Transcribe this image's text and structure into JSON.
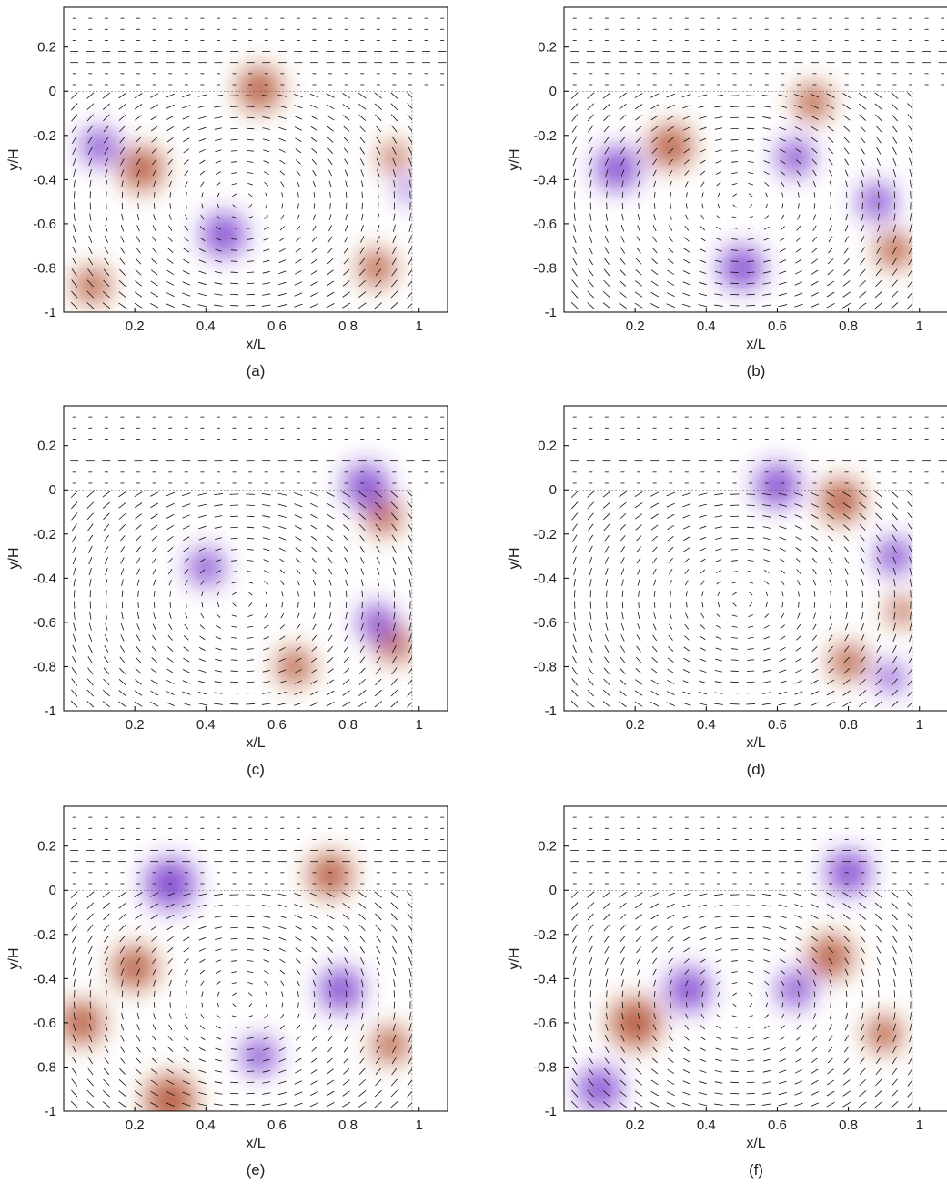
{
  "chart_data": [
    {
      "type": "heatmap",
      "caption": "(a)",
      "xlabel": "x/L",
      "ylabel": "y/H",
      "xlim": [
        0,
        1.08
      ],
      "ylim": [
        -1,
        0.38
      ],
      "xticks": [
        0.2,
        0.4,
        0.6,
        0.8,
        1
      ],
      "xtick_labels": [
        "0.2",
        "0.4",
        "0.6",
        "0.8",
        "1"
      ],
      "yticks": [
        0.2,
        0,
        -0.2,
        -0.4,
        -0.6,
        -0.8,
        -1
      ],
      "ytick_labels": [
        "0.2",
        "0",
        "-0.2",
        "-0.4",
        "-0.6",
        "-0.8",
        "-1"
      ],
      "cavity": {
        "x_end": 0.98,
        "y_top": 0
      },
      "blobs": [
        {
          "x": 0.22,
          "y": -0.35,
          "r": 0.06,
          "s": 1
        },
        {
          "x": 0.93,
          "y": -0.3,
          "r": 0.04,
          "s": 1
        },
        {
          "x": 0.55,
          "y": 0.01,
          "r": 0.06,
          "s": 1
        },
        {
          "x": 0.08,
          "y": -0.88,
          "r": 0.05,
          "s": 1
        },
        {
          "x": 0.88,
          "y": -0.8,
          "r": 0.05,
          "s": 1
        },
        {
          "x": 0.97,
          "y": -0.45,
          "r": 0.03,
          "s": -1
        },
        {
          "x": 0.1,
          "y": -0.25,
          "r": 0.05,
          "s": -1
        },
        {
          "x": 0.45,
          "y": -0.65,
          "r": 0.06,
          "s": -1
        }
      ]
    },
    {
      "type": "heatmap",
      "caption": "(b)",
      "xlabel": "x/L",
      "ylabel": "y/H",
      "xlim": [
        0,
        1.08
      ],
      "ylim": [
        -1,
        0.38
      ],
      "xticks": [
        0.2,
        0.4,
        0.6,
        0.8,
        1
      ],
      "xtick_labels": [
        "0.2",
        "0.4",
        "0.6",
        "0.8",
        "1"
      ],
      "yticks": [
        0.2,
        0,
        -0.2,
        -0.4,
        -0.6,
        -0.8,
        -1
      ],
      "ytick_labels": [
        "0.2",
        "0",
        "-0.2",
        "-0.4",
        "-0.6",
        "-0.8",
        "-1"
      ],
      "cavity": {
        "x_end": 0.98,
        "y_top": 0
      },
      "blobs": [
        {
          "x": 0.93,
          "y": -0.72,
          "r": 0.05,
          "s": 1
        },
        {
          "x": 0.3,
          "y": -0.25,
          "r": 0.06,
          "s": 1
        },
        {
          "x": 0.7,
          "y": -0.05,
          "r": 0.05,
          "s": 1
        },
        {
          "x": 0.15,
          "y": -0.35,
          "r": 0.06,
          "s": -1
        },
        {
          "x": 0.88,
          "y": -0.5,
          "r": 0.05,
          "s": -1
        },
        {
          "x": 0.5,
          "y": -0.8,
          "r": 0.06,
          "s": -1
        },
        {
          "x": 0.65,
          "y": -0.3,
          "r": 0.05,
          "s": -1
        }
      ]
    },
    {
      "type": "heatmap",
      "caption": "(c)",
      "xlabel": "x/L",
      "ylabel": "y/H",
      "xlim": [
        0,
        1.08
      ],
      "ylim": [
        -1,
        0.38
      ],
      "xticks": [
        0.2,
        0.4,
        0.6,
        0.8,
        1
      ],
      "xtick_labels": [
        "0.2",
        "0.4",
        "0.6",
        "0.8",
        "1"
      ],
      "yticks": [
        0.2,
        0,
        -0.2,
        -0.4,
        -0.6,
        -0.8,
        -1
      ],
      "ytick_labels": [
        "0.2",
        "0",
        "-0.2",
        "-0.4",
        "-0.6",
        "-0.8",
        "-1"
      ],
      "cavity": {
        "x_end": 0.98,
        "y_top": 0
      },
      "blobs": [
        {
          "x": 0.9,
          "y": -0.12,
          "r": 0.05,
          "s": 1
        },
        {
          "x": 0.93,
          "y": -0.7,
          "r": 0.05,
          "s": 1
        },
        {
          "x": 0.65,
          "y": -0.8,
          "r": 0.05,
          "s": 1
        },
        {
          "x": 0.88,
          "y": -0.6,
          "r": 0.05,
          "s": -1
        },
        {
          "x": 0.85,
          "y": 0.02,
          "r": 0.06,
          "s": -1
        },
        {
          "x": 0.4,
          "y": -0.35,
          "r": 0.05,
          "s": -1
        }
      ]
    },
    {
      "type": "heatmap",
      "caption": "(d)",
      "xlabel": "x/L",
      "ylabel": "y/H",
      "xlim": [
        0,
        1.08
      ],
      "ylim": [
        -1,
        0.38
      ],
      "xticks": [
        0.2,
        0.4,
        0.6,
        0.8,
        1
      ],
      "xtick_labels": [
        "0.2",
        "0.4",
        "0.6",
        "0.8",
        "1"
      ],
      "yticks": [
        0.2,
        0,
        -0.2,
        -0.4,
        -0.6,
        -0.8,
        -1
      ],
      "ytick_labels": [
        "0.2",
        "0",
        "-0.2",
        "-0.4",
        "-0.6",
        "-0.8",
        "-1"
      ],
      "cavity": {
        "x_end": 0.98,
        "y_top": 0
      },
      "blobs": [
        {
          "x": 0.78,
          "y": -0.05,
          "r": 0.06,
          "s": 1
        },
        {
          "x": 0.95,
          "y": -0.55,
          "r": 0.04,
          "s": 1
        },
        {
          "x": 0.8,
          "y": -0.78,
          "r": 0.05,
          "s": 1
        },
        {
          "x": 0.93,
          "y": -0.3,
          "r": 0.05,
          "s": -1
        },
        {
          "x": 0.92,
          "y": -0.85,
          "r": 0.04,
          "s": -1
        },
        {
          "x": 0.6,
          "y": 0.02,
          "r": 0.06,
          "s": -1
        }
      ]
    },
    {
      "type": "heatmap",
      "caption": "(e)",
      "xlabel": "x/L",
      "ylabel": "y/H",
      "xlim": [
        0,
        1.08
      ],
      "ylim": [
        -1,
        0.38
      ],
      "xticks": [
        0.2,
        0.4,
        0.6,
        0.8,
        1
      ],
      "xtick_labels": [
        "0.2",
        "0.4",
        "0.6",
        "0.8",
        "1"
      ],
      "yticks": [
        0.2,
        0,
        -0.2,
        -0.4,
        -0.6,
        -0.8,
        -1
      ],
      "ytick_labels": [
        "0.2",
        "0",
        "-0.2",
        "-0.4",
        "-0.6",
        "-0.8",
        "-1"
      ],
      "cavity": {
        "x_end": 0.98,
        "y_top": 0
      },
      "blobs": [
        {
          "x": 0.75,
          "y": 0.07,
          "r": 0.06,
          "s": 1
        },
        {
          "x": 0.05,
          "y": -0.6,
          "r": 0.06,
          "s": 1
        },
        {
          "x": 0.3,
          "y": -0.95,
          "r": 0.07,
          "s": 1
        },
        {
          "x": 0.92,
          "y": -0.7,
          "r": 0.05,
          "s": 1
        },
        {
          "x": 0.2,
          "y": -0.35,
          "r": 0.06,
          "s": 1
        },
        {
          "x": 0.78,
          "y": -0.45,
          "r": 0.06,
          "s": -1
        },
        {
          "x": 0.3,
          "y": 0.03,
          "r": 0.07,
          "s": -1
        },
        {
          "x": 0.55,
          "y": -0.75,
          "r": 0.05,
          "s": -1
        }
      ]
    },
    {
      "type": "heatmap",
      "caption": "(f)",
      "xlabel": "x/L",
      "ylabel": "y/H",
      "xlim": [
        0,
        1.08
      ],
      "ylim": [
        -1,
        0.38
      ],
      "xticks": [
        0.2,
        0.4,
        0.6,
        0.8,
        1
      ],
      "xtick_labels": [
        "0.2",
        "0.4",
        "0.6",
        "0.8",
        "1"
      ],
      "yticks": [
        0.2,
        0,
        -0.2,
        -0.4,
        -0.6,
        -0.8,
        -1
      ],
      "ytick_labels": [
        "0.2",
        "0",
        "-0.2",
        "-0.4",
        "-0.6",
        "-0.8",
        "-1"
      ],
      "cavity": {
        "x_end": 0.98,
        "y_top": 0
      },
      "blobs": [
        {
          "x": 0.2,
          "y": -0.6,
          "r": 0.07,
          "s": 1
        },
        {
          "x": 0.75,
          "y": -0.3,
          "r": 0.06,
          "s": 1
        },
        {
          "x": 0.9,
          "y": -0.65,
          "r": 0.05,
          "s": 1
        },
        {
          "x": 0.35,
          "y": -0.45,
          "r": 0.06,
          "s": -1
        },
        {
          "x": 0.1,
          "y": -0.9,
          "r": 0.06,
          "s": -1
        },
        {
          "x": 0.8,
          "y": 0.08,
          "r": 0.06,
          "s": -1
        },
        {
          "x": 0.65,
          "y": -0.45,
          "r": 0.05,
          "s": -1
        }
      ]
    }
  ],
  "colors": {
    "positive": "#a93d18",
    "negative": "#6b28c8",
    "vector": "#111111"
  }
}
